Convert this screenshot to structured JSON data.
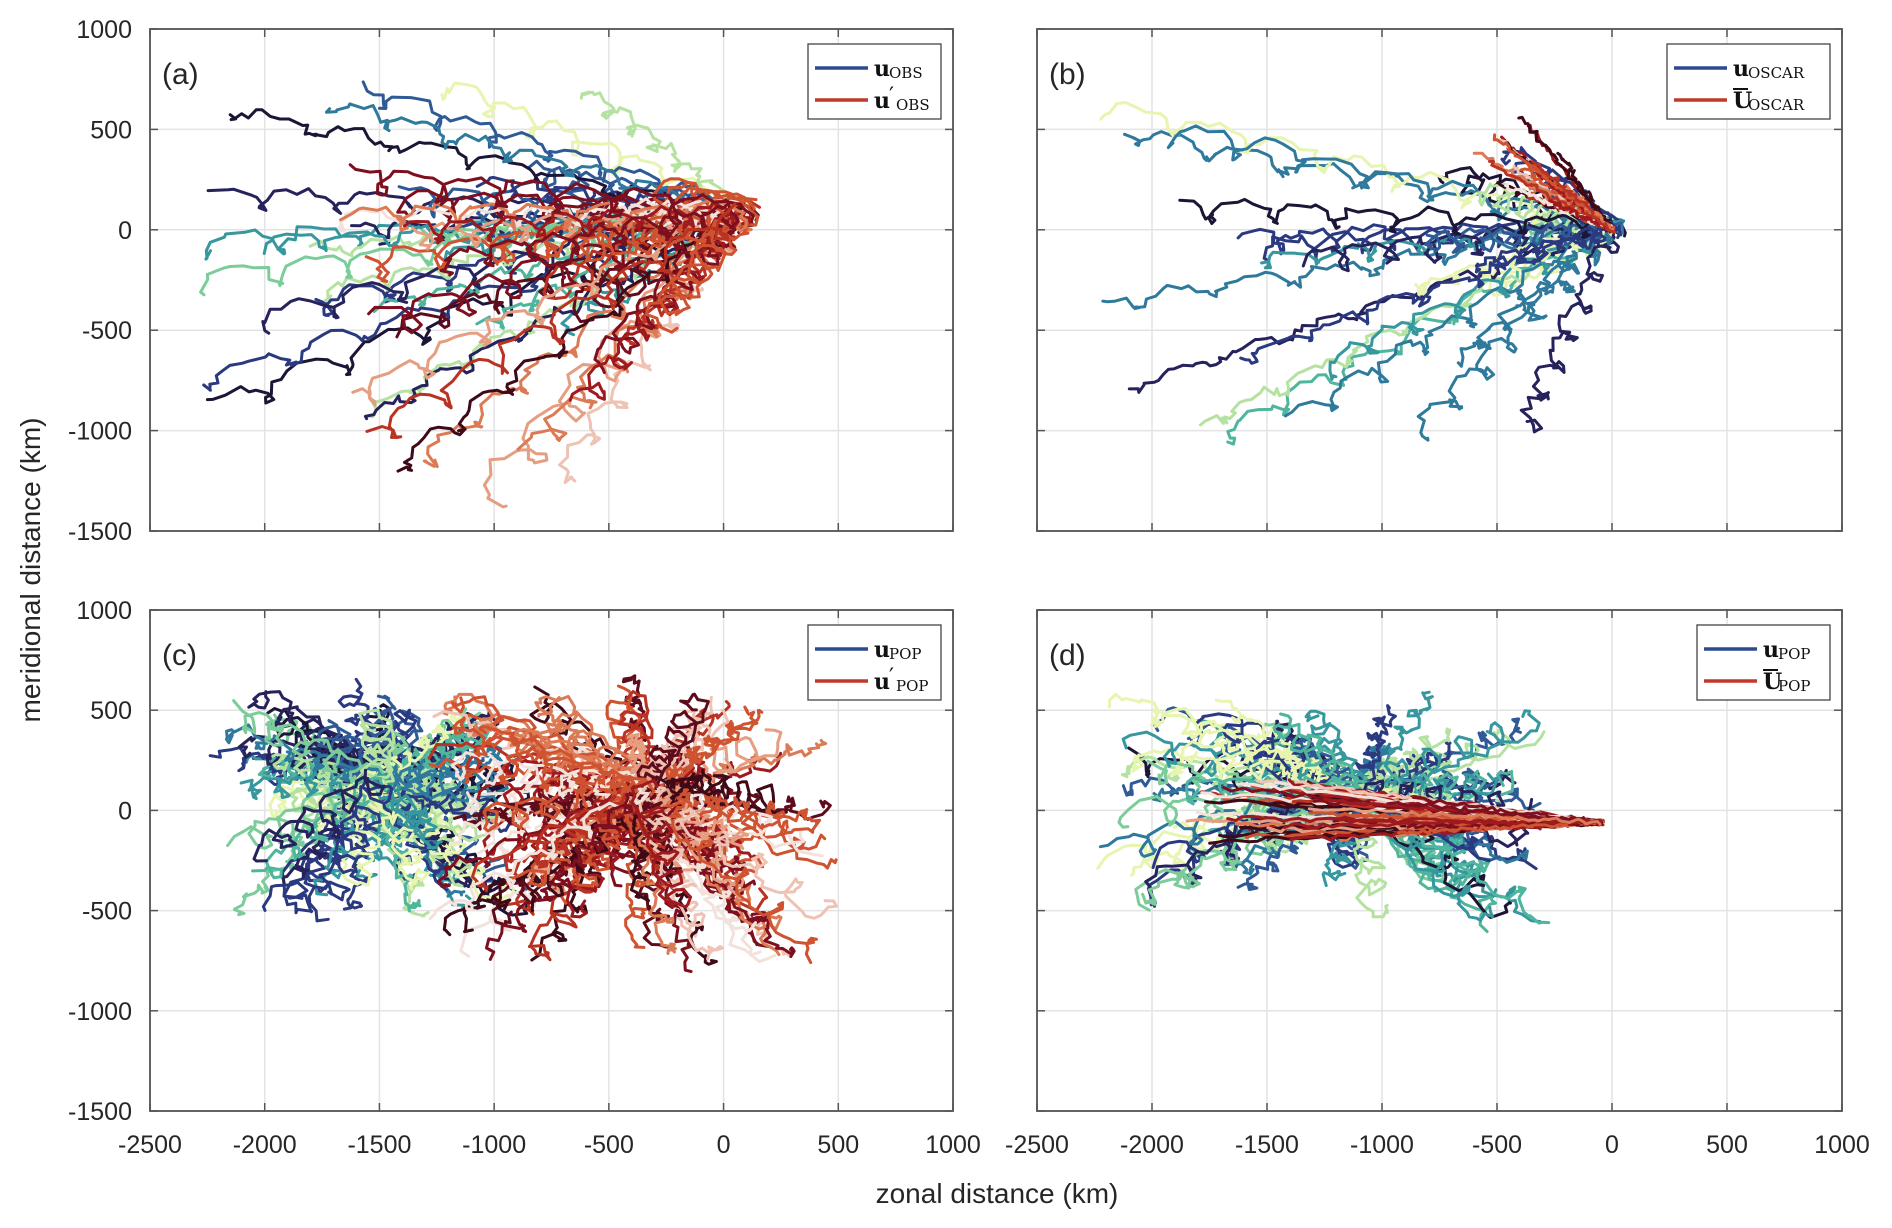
{
  "chart_data": [
    {
      "type": "line",
      "panel": "(a)",
      "title": "",
      "xlabel": "zonal distance (km)",
      "ylabel": "meridional distance (km)",
      "xlim": [
        -2500,
        1000
      ],
      "ylim": [
        -1500,
        1000
      ],
      "xticks": [
        "-2500",
        "-2000",
        "-1500",
        "-1000",
        "-500",
        "0",
        "500",
        "1000"
      ],
      "yticks": [
        "1000",
        "500",
        "0",
        "-500",
        "-1000",
        "-1500"
      ],
      "grid": true,
      "legend_position": "top-right",
      "legend": [
        {
          "label_main": "u",
          "label_prime": "",
          "label_sub": "OBS",
          "bar": false,
          "color": "#2e4a8f"
        },
        {
          "label_main": "u",
          "label_prime": "′",
          "label_sub": "OBS",
          "bar": false,
          "color": "#c0392b"
        }
      ],
      "series": [
        {
          "name": "u_OBS",
          "colormap": "deep-blue-green-yellow",
          "count": 28,
          "origin": [
            80,
            80
          ],
          "x_extent": [
            -2400,
            100
          ],
          "y_extent": [
            -1000,
            720
          ],
          "style": "wiggly"
        },
        {
          "name": "u'_OBS",
          "colormap": "dark-red-orange-pink",
          "count": 28,
          "origin": [
            80,
            80
          ],
          "x_extent": [
            -1750,
            100
          ],
          "y_extent": [
            -1420,
            250
          ],
          "style": "looping"
        }
      ],
      "seed": 11
    },
    {
      "type": "line",
      "panel": "(b)",
      "xlim": [
        -2500,
        1000
      ],
      "ylim": [
        -1500,
        1000
      ],
      "xticks": [
        "-2500",
        "-2000",
        "-1500",
        "-1000",
        "-500",
        "0",
        "500",
        "1000"
      ],
      "yticks": [
        "1000",
        "500",
        "0",
        "-500",
        "-1000",
        "-1500"
      ],
      "grid": true,
      "legend_position": "top-right",
      "legend": [
        {
          "label_main": "u",
          "label_prime": "",
          "label_sub": "OSCAR",
          "bar": false,
          "color": "#2e4a8f"
        },
        {
          "label_main": "U",
          "label_prime": "",
          "label_sub": "OSCAR",
          "bar": true,
          "color": "#c0392b"
        }
      ],
      "series": [
        {
          "name": "u_OSCAR",
          "colormap": "deep-blue-green-yellow",
          "count": 26,
          "origin": [
            0,
            0
          ],
          "x_extent": [
            -2330,
            40
          ],
          "y_extent": [
            -1060,
            700
          ],
          "style": "wiggly"
        },
        {
          "name": "Ubar_OSCAR",
          "colormap": "dark-red-orange-pink",
          "count": 22,
          "origin": [
            0,
            0
          ],
          "x_extent": [
            -700,
            0
          ],
          "y_extent": [
            0,
            720
          ],
          "style": "fan",
          "fan_direction_deg": [
            118,
            160
          ]
        }
      ],
      "seed": 23
    },
    {
      "type": "line",
      "panel": "(c)",
      "xlim": [
        -2500,
        1000
      ],
      "ylim": [
        -1500,
        1000
      ],
      "xticks": [
        "-2500",
        "-2000",
        "-1500",
        "-1000",
        "-500",
        "0",
        "500",
        "1000"
      ],
      "yticks": [
        "1000",
        "500",
        "0",
        "-500",
        "-1000",
        "-1500"
      ],
      "grid": true,
      "legend_position": "top-right",
      "legend": [
        {
          "label_main": "u",
          "label_prime": "",
          "label_sub": "POP",
          "bar": false,
          "color": "#2e4a8f"
        },
        {
          "label_main": "u",
          "label_prime": "′",
          "label_sub": "POP",
          "bar": false,
          "color": "#c0392b"
        }
      ],
      "series": [
        {
          "name": "u_POP",
          "colormap": "deep-blue-green-yellow",
          "count": 90,
          "origin": [
            -1500,
            150
          ],
          "x_extent": [
            -2200,
            -650
          ],
          "y_extent": [
            -550,
            600
          ],
          "style": "dense-cloud"
        },
        {
          "name": "u'_POP",
          "colormap": "dark-red-orange-pink",
          "count": 110,
          "origin": [
            -350,
            100
          ],
          "x_extent": [
            -1250,
            780
          ],
          "y_extent": [
            -800,
            670
          ],
          "style": "dense-cloud"
        }
      ],
      "seed": 37
    },
    {
      "type": "line",
      "panel": "(d)",
      "xlim": [
        -2500,
        1000
      ],
      "ylim": [
        -1500,
        1000
      ],
      "xticks": [
        "-2500",
        "-2000",
        "-1500",
        "-1000",
        "-500",
        "0",
        "500",
        "1000"
      ],
      "yticks": [
        "1000",
        "500",
        "0",
        "-500",
        "-1000",
        "-1500"
      ],
      "grid": true,
      "legend_position": "top-right",
      "legend": [
        {
          "label_main": "u",
          "label_prime": "",
          "label_sub": "POP",
          "bar": false,
          "color": "#2e4a8f"
        },
        {
          "label_main": "U",
          "label_prime": "",
          "label_sub": "POP",
          "bar": true,
          "color": "#c0392b"
        }
      ],
      "series": [
        {
          "name": "u_POP",
          "colormap": "deep-blue-green-yellow",
          "count": 90,
          "origin": [
            -1100,
            100
          ],
          "x_extent": [
            -2200,
            60
          ],
          "y_extent": [
            -550,
            580
          ],
          "style": "dense-cloud"
        },
        {
          "name": "Ubar_POP",
          "colormap": "dark-red-orange-pink",
          "count": 70,
          "origin": [
            -50,
            -60
          ],
          "x_extent": [
            -1800,
            0
          ],
          "y_extent": [
            -200,
            560
          ],
          "style": "fan",
          "fan_direction_deg": [
            160,
            190
          ]
        }
      ],
      "seed": 53
    }
  ],
  "figure": {
    "xlabel": "zonal distance (km)",
    "ylabel": "meridional distance (km)"
  },
  "colormaps": {
    "deep-blue-green-yellow": [
      "#1c1536",
      "#26225b",
      "#2b3a80",
      "#2f5a96",
      "#2f7a9c",
      "#36989e",
      "#4fb59c",
      "#7ccc9a",
      "#b5e2a0",
      "#e8f5b0"
    ],
    "dark-red-orange-pink": [
      "#3f0a17",
      "#5e0c1c",
      "#7d0f1e",
      "#9e1a1f",
      "#b93222",
      "#cf5330",
      "#dc7a55",
      "#e69e82",
      "#efc3b4",
      "#f3e2dc"
    ]
  }
}
